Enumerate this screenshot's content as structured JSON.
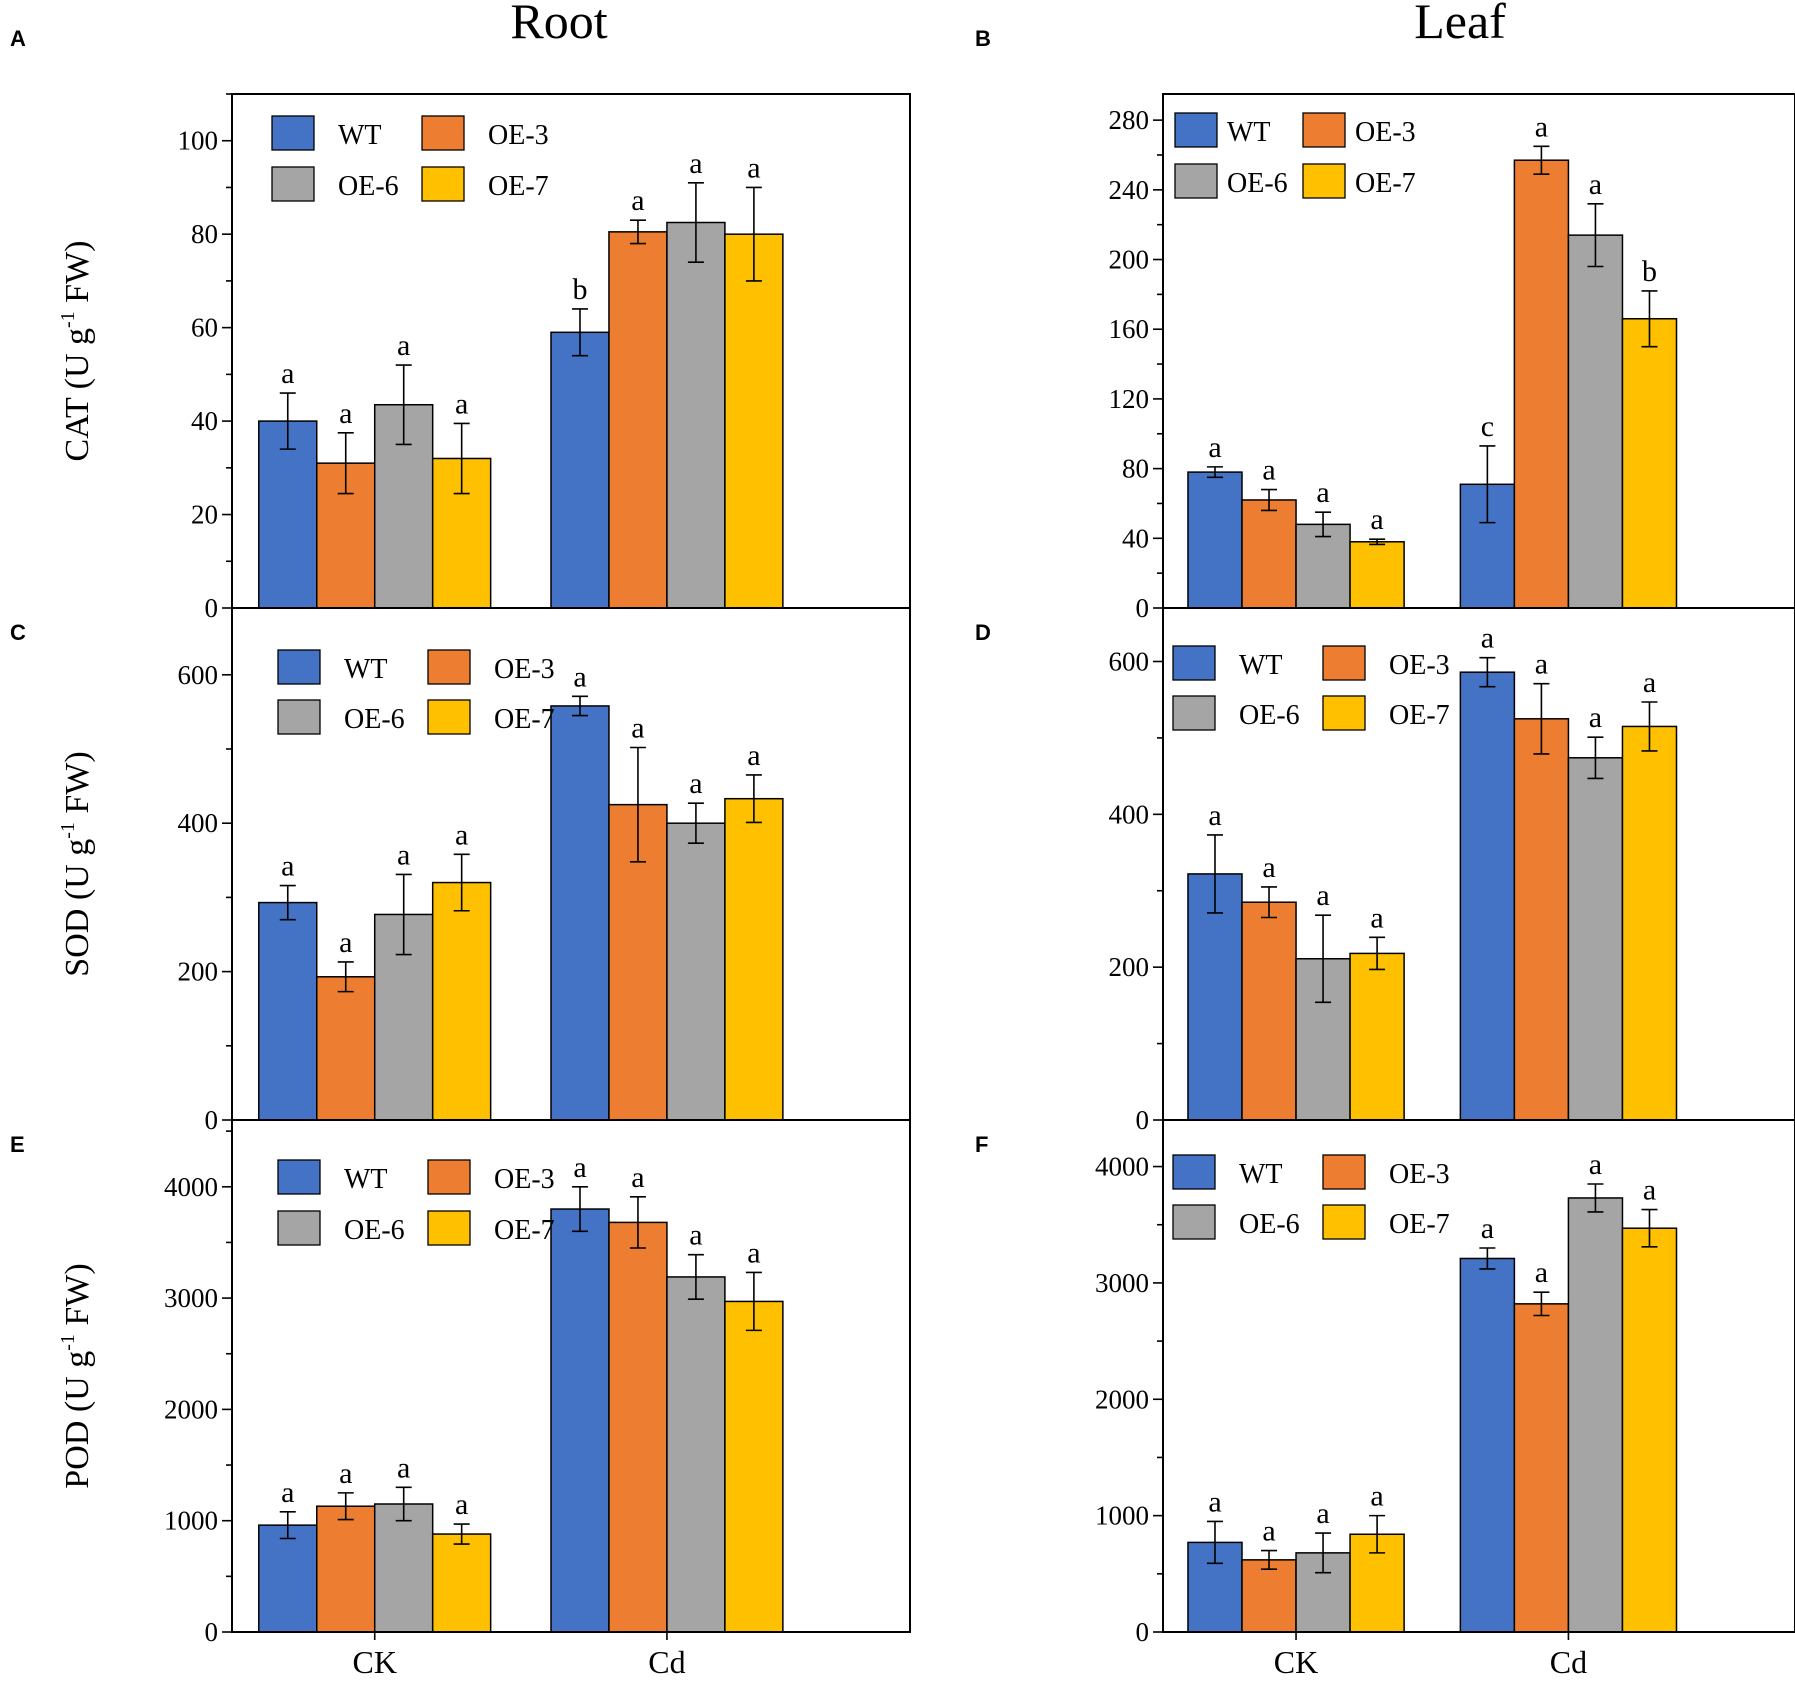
{
  "column_titles": [
    "Root",
    "Leaf"
  ],
  "legend": {
    "entries": [
      {
        "name": "WT",
        "color": "#4472C4"
      },
      {
        "name": "OE-3",
        "color": "#ED7D31"
      },
      {
        "name": "OE-6",
        "color": "#A5A5A5"
      },
      {
        "name": "OE-7",
        "color": "#FFC000"
      }
    ]
  },
  "chart_data": [
    {
      "id": "A",
      "letter": "A",
      "type": "bar",
      "ylabel": {
        "pre": "CAT (U g",
        "sup": "-1",
        "post": " FW)"
      },
      "categories": [
        "CK",
        "Cd"
      ],
      "show_categories": false,
      "ylim": [
        0,
        110
      ],
      "yticks": [
        0,
        20,
        40,
        60,
        80,
        100
      ],
      "minor_step": 10,
      "series": [
        {
          "name": "WT",
          "values": [
            40,
            59
          ],
          "errors": [
            6,
            5
          ],
          "letters": [
            "a",
            "b"
          ]
        },
        {
          "name": "OE-3",
          "values": [
            31,
            80.5
          ],
          "errors": [
            6.5,
            2.5
          ],
          "letters": [
            "a",
            "a"
          ]
        },
        {
          "name": "OE-6",
          "values": [
            43.5,
            82.5
          ],
          "errors": [
            8.5,
            8.5
          ],
          "letters": [
            "a",
            "a"
          ]
        },
        {
          "name": "OE-7",
          "values": [
            32,
            80
          ],
          "errors": [
            7.5,
            10
          ],
          "letters": [
            "a",
            "a"
          ]
        }
      ]
    },
    {
      "id": "B",
      "letter": "B",
      "type": "bar",
      "ylabel": {
        "pre": "",
        "sup": "",
        "post": ""
      },
      "categories": [
        "CK",
        "Cd"
      ],
      "show_categories": false,
      "ylim": [
        0,
        295
      ],
      "yticks": [
        0,
        40,
        80,
        120,
        160,
        200,
        240,
        280
      ],
      "minor_step": 20,
      "series": [
        {
          "name": "WT",
          "values": [
            78,
            71
          ],
          "errors": [
            3,
            22
          ],
          "letters": [
            "a",
            "c"
          ]
        },
        {
          "name": "OE-3",
          "values": [
            62,
            257
          ],
          "errors": [
            6,
            8
          ],
          "letters": [
            "a",
            "a"
          ]
        },
        {
          "name": "OE-6",
          "values": [
            48,
            214
          ],
          "errors": [
            7,
            18
          ],
          "letters": [
            "a",
            "a"
          ]
        },
        {
          "name": "OE-7",
          "values": [
            38,
            166
          ],
          "errors": [
            1.5,
            16
          ],
          "letters": [
            "a",
            "b"
          ]
        }
      ]
    },
    {
      "id": "C",
      "letter": "C",
      "type": "bar",
      "ylabel": {
        "pre": "SOD (U g",
        "sup": "-1",
        "post": " FW)"
      },
      "categories": [
        "CK",
        "Cd"
      ],
      "show_categories": false,
      "ylim": [
        0,
        690
      ],
      "yticks": [
        0,
        200,
        400,
        600
      ],
      "minor_step": 100,
      "series": [
        {
          "name": "WT",
          "values": [
            293,
            558
          ],
          "errors": [
            23,
            13
          ],
          "letters": [
            "a",
            "a"
          ]
        },
        {
          "name": "OE-3",
          "values": [
            193,
            425
          ],
          "errors": [
            20,
            77
          ],
          "letters": [
            "a",
            "a"
          ]
        },
        {
          "name": "OE-6",
          "values": [
            277,
            400
          ],
          "errors": [
            54,
            27
          ],
          "letters": [
            "a",
            "a"
          ]
        },
        {
          "name": "OE-7",
          "values": [
            320,
            433
          ],
          "errors": [
            38,
            32
          ],
          "letters": [
            "a",
            "a"
          ]
        }
      ]
    },
    {
      "id": "D",
      "letter": "D",
      "type": "bar",
      "ylabel": {
        "pre": "",
        "sup": "",
        "post": ""
      },
      "categories": [
        "CK",
        "Cd"
      ],
      "show_categories": false,
      "ylim": [
        0,
        670
      ],
      "yticks": [
        0,
        200,
        400,
        600
      ],
      "minor_step": 100,
      "series": [
        {
          "name": "WT",
          "values": [
            322,
            586
          ],
          "errors": [
            51,
            19
          ],
          "letters": [
            "a",
            "a"
          ]
        },
        {
          "name": "OE-3",
          "values": [
            285,
            525
          ],
          "errors": [
            20,
            46
          ],
          "letters": [
            "a",
            "a"
          ]
        },
        {
          "name": "OE-6",
          "values": [
            211,
            474
          ],
          "errors": [
            57,
            27
          ],
          "letters": [
            "a",
            "a"
          ]
        },
        {
          "name": "OE-7",
          "values": [
            218,
            515
          ],
          "errors": [
            21,
            32
          ],
          "letters": [
            "a",
            "a"
          ]
        }
      ]
    },
    {
      "id": "E",
      "letter": "E",
      "type": "bar",
      "ylabel": {
        "pre": "POD (U g",
        "sup": "-1",
        "post": " FW)"
      },
      "categories": [
        "CK",
        "Cd"
      ],
      "show_categories": true,
      "ylim": [
        0,
        4600
      ],
      "yticks": [
        0,
        1000,
        2000,
        3000,
        4000
      ],
      "minor_step": 500,
      "series": [
        {
          "name": "WT",
          "values": [
            960,
            3800
          ],
          "errors": [
            120,
            200
          ],
          "letters": [
            "a",
            "a"
          ]
        },
        {
          "name": "OE-3",
          "values": [
            1130,
            3680
          ],
          "errors": [
            120,
            230
          ],
          "letters": [
            "a",
            "a"
          ]
        },
        {
          "name": "OE-6",
          "values": [
            1150,
            3190
          ],
          "errors": [
            150,
            200
          ],
          "letters": [
            "a",
            "a"
          ]
        },
        {
          "name": "OE-7",
          "values": [
            880,
            2970
          ],
          "errors": [
            90,
            260
          ],
          "letters": [
            "a",
            "a"
          ]
        }
      ]
    },
    {
      "id": "F",
      "letter": "F",
      "type": "bar",
      "ylabel": {
        "pre": "",
        "sup": "",
        "post": ""
      },
      "categories": [
        "CK",
        "Cd"
      ],
      "show_categories": true,
      "ylim": [
        0,
        4400
      ],
      "yticks": [
        0,
        1000,
        2000,
        3000,
        4000
      ],
      "minor_step": 500,
      "series": [
        {
          "name": "WT",
          "values": [
            770,
            3210
          ],
          "errors": [
            180,
            90
          ],
          "letters": [
            "a",
            "a"
          ]
        },
        {
          "name": "OE-3",
          "values": [
            620,
            2820
          ],
          "errors": [
            80,
            100
          ],
          "letters": [
            "a",
            "a"
          ]
        },
        {
          "name": "OE-6",
          "values": [
            680,
            3730
          ],
          "errors": [
            170,
            120
          ],
          "letters": [
            "a",
            "a"
          ]
        },
        {
          "name": "OE-7",
          "values": [
            840,
            3470
          ],
          "errors": [
            160,
            160
          ],
          "letters": [
            "a",
            "a"
          ]
        }
      ]
    }
  ]
}
